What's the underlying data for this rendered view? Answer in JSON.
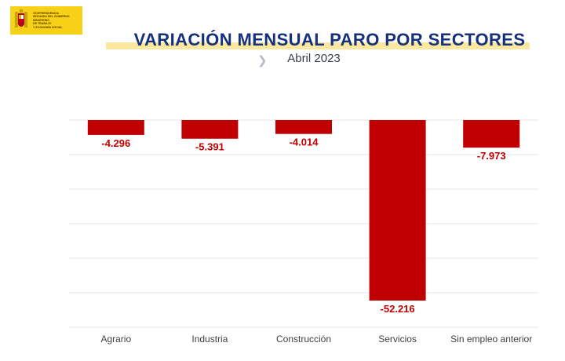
{
  "logo": {
    "text": "VICEPRESIDENCIA\nSEGUNDA DEL GOBIERNO\nMINISTERIO\nDE TRABAJO\nY ECONOMÍA SOCIAL",
    "color": "#f7d117"
  },
  "chart_data": {
    "type": "bar",
    "title": "VARIACIÓN MENSUAL PARO POR SECTORES",
    "subtitle": "Abril 2023",
    "categories": [
      "Agrario",
      "Industria",
      "Construcción",
      "Servicios",
      "Sin empleo anterior"
    ],
    "values": [
      -4296,
      -5391,
      -4014,
      -52216,
      -7973
    ],
    "data_labels": [
      "-4.296",
      "-5.391",
      "-4.014",
      "-52.216",
      "-7.973"
    ],
    "ylim": [
      -54000,
      0
    ],
    "grid": true,
    "legend": "none",
    "colors": {
      "bar": "#c00000",
      "label": "#c00000",
      "title": "#16307a",
      "grid": "#e6e6e6"
    }
  }
}
